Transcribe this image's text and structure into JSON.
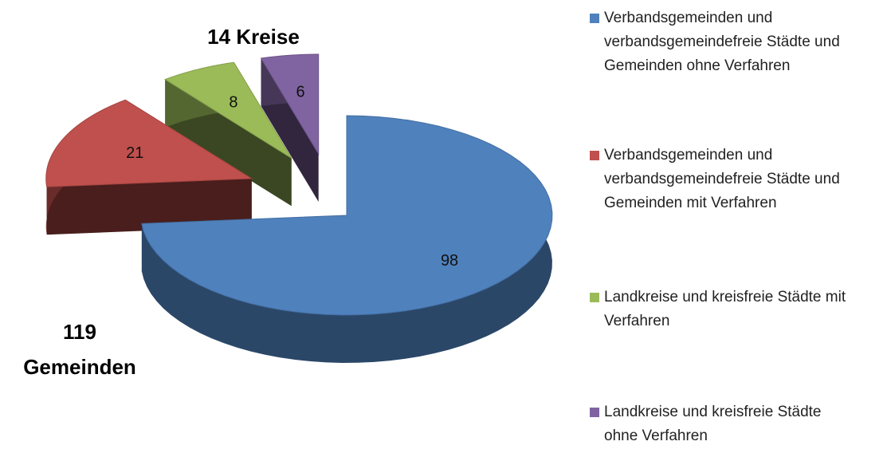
{
  "chart_data": {
    "type": "pie3d",
    "series": [
      {
        "name": "Verbandsgemeinden und verbandsgemeindefreie Städte und Gemeinden ohne Verfahren",
        "color": "#4f81bd",
        "values": [
          98
        ]
      },
      {
        "name": "Verbandsgemeinden und verbandsgemeindefreie Städte und Gemeinden mit Verfahren",
        "color": "#c0504d",
        "values": [
          21
        ]
      },
      {
        "name": "Landkreise und kreisfreie Städte mit Verfahren",
        "color": "#9bbb59",
        "values": [
          8
        ]
      },
      {
        "name": "Landkreise und kreisfreie Städte ohne Verfahren",
        "color": "#8064a2",
        "values": [
          6
        ]
      }
    ],
    "annotations": [
      [
        "14 Kreise"
      ],
      [
        "119",
        "Gemeinden"
      ]
    ],
    "legend": "right"
  }
}
